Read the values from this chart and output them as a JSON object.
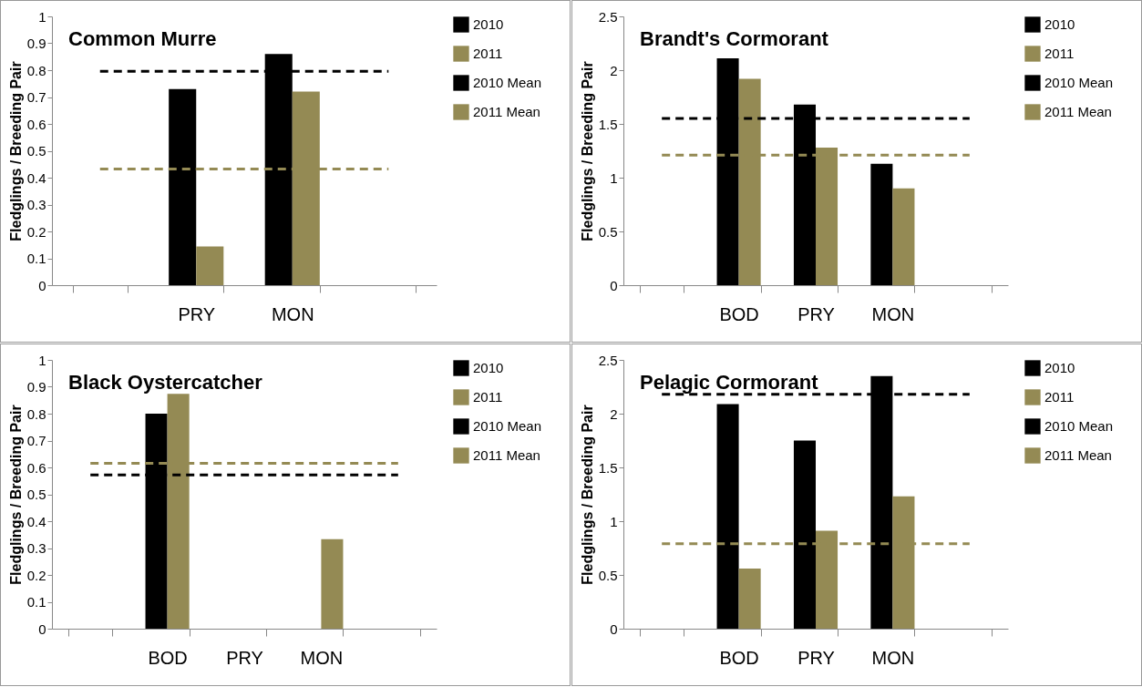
{
  "chart_data": [
    {
      "type": "bar",
      "title": "Common Murre",
      "ylabel": "Fledglings / Breeding Pair",
      "categories": [
        null,
        "PRY",
        "MON",
        null
      ],
      "ylim": [
        0,
        1
      ],
      "yticks": [
        0,
        0.1,
        0.2,
        0.3,
        0.4,
        0.5,
        0.6,
        0.7,
        0.8,
        0.9,
        1
      ],
      "legend": "right",
      "line_style": "dashed",
      "series": [
        {
          "name": "2010",
          "color": "#000000",
          "values": [
            null,
            0.73,
            0.86,
            null
          ]
        },
        {
          "name": "2011",
          "color": "#948a54",
          "values": [
            null,
            0.144,
            0.72,
            null
          ]
        },
        {
          "name": "2010 Mean",
          "type": "line",
          "color": "#000000",
          "values": [
            0.796,
            0.796,
            0.796,
            0.796
          ]
        },
        {
          "name": "2011 Mean",
          "type": "line",
          "color": "#948a54",
          "values": [
            0.432,
            0.432,
            0.432,
            0.432
          ]
        }
      ]
    },
    {
      "type": "bar",
      "title": "Brandt's Cormorant",
      "ylabel": "Fledglings / Breeding Pair",
      "categories": [
        null,
        "BOD",
        "PRY",
        "MON",
        null
      ],
      "ylim": [
        0,
        2.5
      ],
      "yticks": [
        0,
        0.5,
        1,
        1.5,
        2,
        2.5
      ],
      "legend": "right",
      "line_style": "dashed",
      "series": [
        {
          "name": "2010",
          "color": "#000000",
          "values": [
            null,
            2.11,
            1.68,
            1.13,
            null
          ]
        },
        {
          "name": "2011",
          "color": "#948a54",
          "values": [
            null,
            1.92,
            1.28,
            0.9,
            null
          ]
        },
        {
          "name": "2010 Mean",
          "type": "line",
          "color": "#000000",
          "values": [
            1.55,
            1.55,
            1.55,
            1.55,
            1.55
          ]
        },
        {
          "name": "2011 Mean",
          "type": "line",
          "color": "#948a54",
          "values": [
            1.21,
            1.21,
            1.21,
            1.21,
            1.21
          ]
        }
      ]
    },
    {
      "type": "bar",
      "title": "Black Oystercatcher",
      "ylabel": "Fledglings / Breeding Pair",
      "categories": [
        null,
        "BOD",
        "PRY",
        "MON",
        null
      ],
      "ylim": [
        0,
        1
      ],
      "yticks": [
        0,
        0.1,
        0.2,
        0.3,
        0.4,
        0.5,
        0.6,
        0.7,
        0.8,
        0.9,
        1
      ],
      "legend": "right",
      "line_style": "dashed",
      "series": [
        {
          "name": "2010",
          "color": "#000000",
          "values": [
            null,
            0.8,
            null,
            null,
            null
          ]
        },
        {
          "name": "2011",
          "color": "#948a54",
          "values": [
            null,
            0.874,
            null,
            0.333,
            null
          ]
        },
        {
          "name": "2010 Mean",
          "type": "line",
          "color": "#000000",
          "values": [
            0.572,
            0.572,
            0.572,
            0.572,
            0.572
          ]
        },
        {
          "name": "2011 Mean",
          "type": "line",
          "color": "#948a54",
          "values": [
            0.615,
            0.615,
            0.615,
            0.615,
            0.615
          ]
        }
      ]
    },
    {
      "type": "bar",
      "title": "Pelagic Cormorant",
      "ylabel": "Fledglings / Breeding Pair",
      "categories": [
        null,
        "BOD",
        "PRY",
        "MON",
        null
      ],
      "ylim": [
        0,
        2.5
      ],
      "yticks": [
        0,
        0.5,
        1,
        1.5,
        2,
        2.5
      ],
      "legend": "right",
      "line_style": "dashed",
      "series": [
        {
          "name": "2010",
          "color": "#000000",
          "values": [
            null,
            2.09,
            1.75,
            2.35,
            null
          ]
        },
        {
          "name": "2011",
          "color": "#948a54",
          "values": [
            null,
            0.56,
            0.91,
            1.23,
            null
          ]
        },
        {
          "name": "2010 Mean",
          "type": "line",
          "color": "#000000",
          "values": [
            2.18,
            2.18,
            2.18,
            2.18,
            2.18
          ]
        },
        {
          "name": "2011 Mean",
          "type": "line",
          "color": "#948a54",
          "values": [
            0.79,
            0.79,
            0.79,
            0.79,
            0.79
          ]
        }
      ]
    }
  ]
}
